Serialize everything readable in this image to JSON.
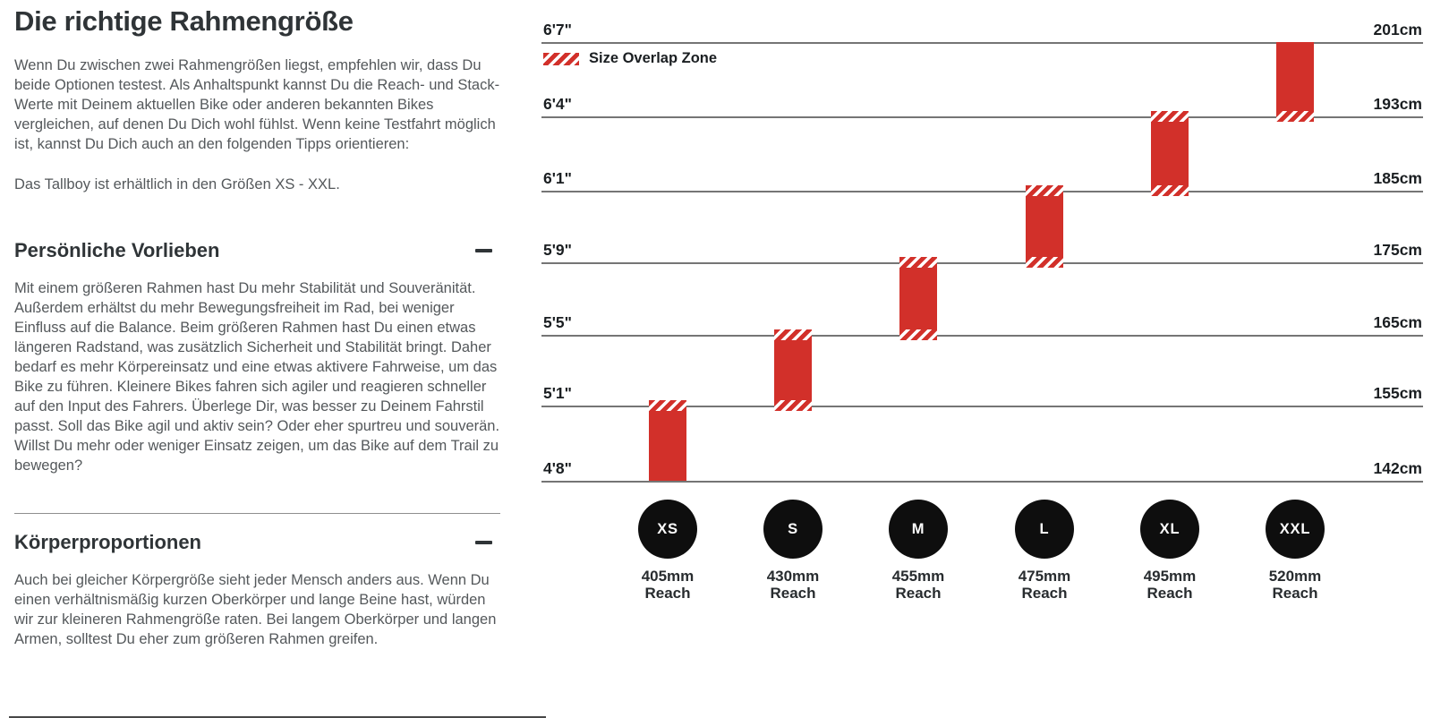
{
  "page": {
    "title": "Die richtige Rahmengröße",
    "intro": "Wenn Du zwischen zwei Rahmengrößen liegst, empfehlen wir, dass Du beide Optionen testest. Als Anhaltspunkt kannst Du die Reach- und Stack-Werte mit Deinem aktuellen Bike oder anderen bekannten Bikes vergleichen, auf denen Du Dich wohl fühlst. Wenn keine Testfahrt möglich ist, kannst Du Dich auch an den folgenden Tipps orientieren:",
    "availability": "Das Tallboy ist erhältlich in den Größen XS - XXL.",
    "sections": [
      {
        "heading": "Persönliche Vorlieben",
        "collapse_icon": "minus",
        "body": "Mit einem größeren Rahmen hast Du mehr Stabilität und Souveränität. Außerdem erhältst du mehr Bewegungsfreiheit im Rad, bei weniger Einfluss auf die Balance. Beim größeren Rahmen hast Du einen etwas längeren Radstand, was zusätzlich Sicherheit und Stabilität bringt. Daher bedarf es mehr Körpereinsatz und eine etwas aktivere Fahrweise, um das Bike zu führen. Kleinere Bikes fahren sich agiler und reagieren schneller auf den Input des Fahrers. Überlege Dir, was besser zu Deinem Fahrstil passt. Soll das Bike agil und aktiv sein? Oder eher spurtreu und souverän. Willst Du mehr oder weniger Einsatz zeigen, um das Bike auf dem Trail zu bewegen?"
      },
      {
        "heading": "Körperproportionen",
        "collapse_icon": "minus",
        "body": "Auch bei gleicher Körpergröße sieht jeder Mensch anders aus. Wenn Du einen verhältnismäßig kurzen Oberkörper und lange Beine hast, würden wir zur kleineren Rahmengröße raten. Bei langem Oberkörper und langen Armen, solltest Du eher zum größeren Rahmen greifen."
      }
    ]
  },
  "chart": {
    "legend": "Size Overlap Zone",
    "reach_caption": "Reach",
    "colors": {
      "bar_red": "#d2302a",
      "line_gray": "#757575",
      "circle_black": "#0e0e0e"
    },
    "rows": [
      {
        "ft": "6'7\"",
        "cm": "201cm"
      },
      {
        "ft": "6'4\"",
        "cm": "193cm"
      },
      {
        "ft": "6'1\"",
        "cm": "185cm"
      },
      {
        "ft": "5'9\"",
        "cm": "175cm"
      },
      {
        "ft": "5'5\"",
        "cm": "165cm"
      },
      {
        "ft": "5'1\"",
        "cm": "155cm"
      },
      {
        "ft": "4'8\"",
        "cm": "142cm"
      }
    ],
    "sizes": [
      {
        "label": "XS",
        "reach": "405mm",
        "top_height": "5'1\"",
        "bottom_height": "4'8\"",
        "overlap_top": true,
        "overlap_bottom": false
      },
      {
        "label": "S",
        "reach": "430mm",
        "top_height": "5'5\"",
        "bottom_height": "5'1\"",
        "overlap_top": true,
        "overlap_bottom": true
      },
      {
        "label": "M",
        "reach": "455mm",
        "top_height": "5'9\"",
        "bottom_height": "5'5\"",
        "overlap_top": true,
        "overlap_bottom": true
      },
      {
        "label": "L",
        "reach": "475mm",
        "top_height": "6'1\"",
        "bottom_height": "5'9\"",
        "overlap_top": true,
        "overlap_bottom": true
      },
      {
        "label": "XL",
        "reach": "495mm",
        "top_height": "6'4\"",
        "bottom_height": "6'1\"",
        "overlap_top": true,
        "overlap_bottom": true
      },
      {
        "label": "XXL",
        "reach": "520mm",
        "top_height": "6'7\"",
        "bottom_height": "6'4\"",
        "overlap_top": false,
        "overlap_bottom": true
      }
    ]
  },
  "chart_data": {
    "type": "bar",
    "subtype": "vertical-range-bars",
    "title": "",
    "legend": [
      "Size Overlap Zone"
    ],
    "legend_position": "top-left",
    "grid": "horizontal-lines",
    "y_axis_left_ticks": [
      "6'7\"",
      "6'4\"",
      "6'1\"",
      "5'9\"",
      "5'5\"",
      "5'1\"",
      "4'8\""
    ],
    "y_axis_right_ticks": [
      "201cm",
      "193cm",
      "185cm",
      "175cm",
      "165cm",
      "155cm",
      "142cm"
    ],
    "y_range_cm": [
      142,
      201
    ],
    "categories": [
      "XS",
      "S",
      "M",
      "L",
      "XL",
      "XXL"
    ],
    "series": [
      {
        "size": "XS",
        "reach_mm": 405,
        "rider_height_cm": [
          142,
          155
        ],
        "rider_height_ft": [
          "4'8\"",
          "5'1\""
        ],
        "overlap_at_cm": [
          155
        ]
      },
      {
        "size": "S",
        "reach_mm": 430,
        "rider_height_cm": [
          155,
          165
        ],
        "rider_height_ft": [
          "5'1\"",
          "5'5\""
        ],
        "overlap_at_cm": [
          155,
          165
        ]
      },
      {
        "size": "M",
        "reach_mm": 455,
        "rider_height_cm": [
          165,
          175
        ],
        "rider_height_ft": [
          "5'5\"",
          "5'9\""
        ],
        "overlap_at_cm": [
          165,
          175
        ]
      },
      {
        "size": "L",
        "reach_mm": 475,
        "rider_height_cm": [
          175,
          185
        ],
        "rider_height_ft": [
          "5'9\"",
          "6'1\""
        ],
        "overlap_at_cm": [
          175,
          185
        ]
      },
      {
        "size": "XL",
        "reach_mm": 495,
        "rider_height_cm": [
          185,
          193
        ],
        "rider_height_ft": [
          "6'1\"",
          "6'4\""
        ],
        "overlap_at_cm": [
          185,
          193
        ]
      },
      {
        "size": "XXL",
        "reach_mm": 520,
        "rider_height_cm": [
          193,
          201
        ],
        "rider_height_ft": [
          "6'4\"",
          "6'7\""
        ],
        "overlap_at_cm": [
          193
        ]
      }
    ]
  }
}
